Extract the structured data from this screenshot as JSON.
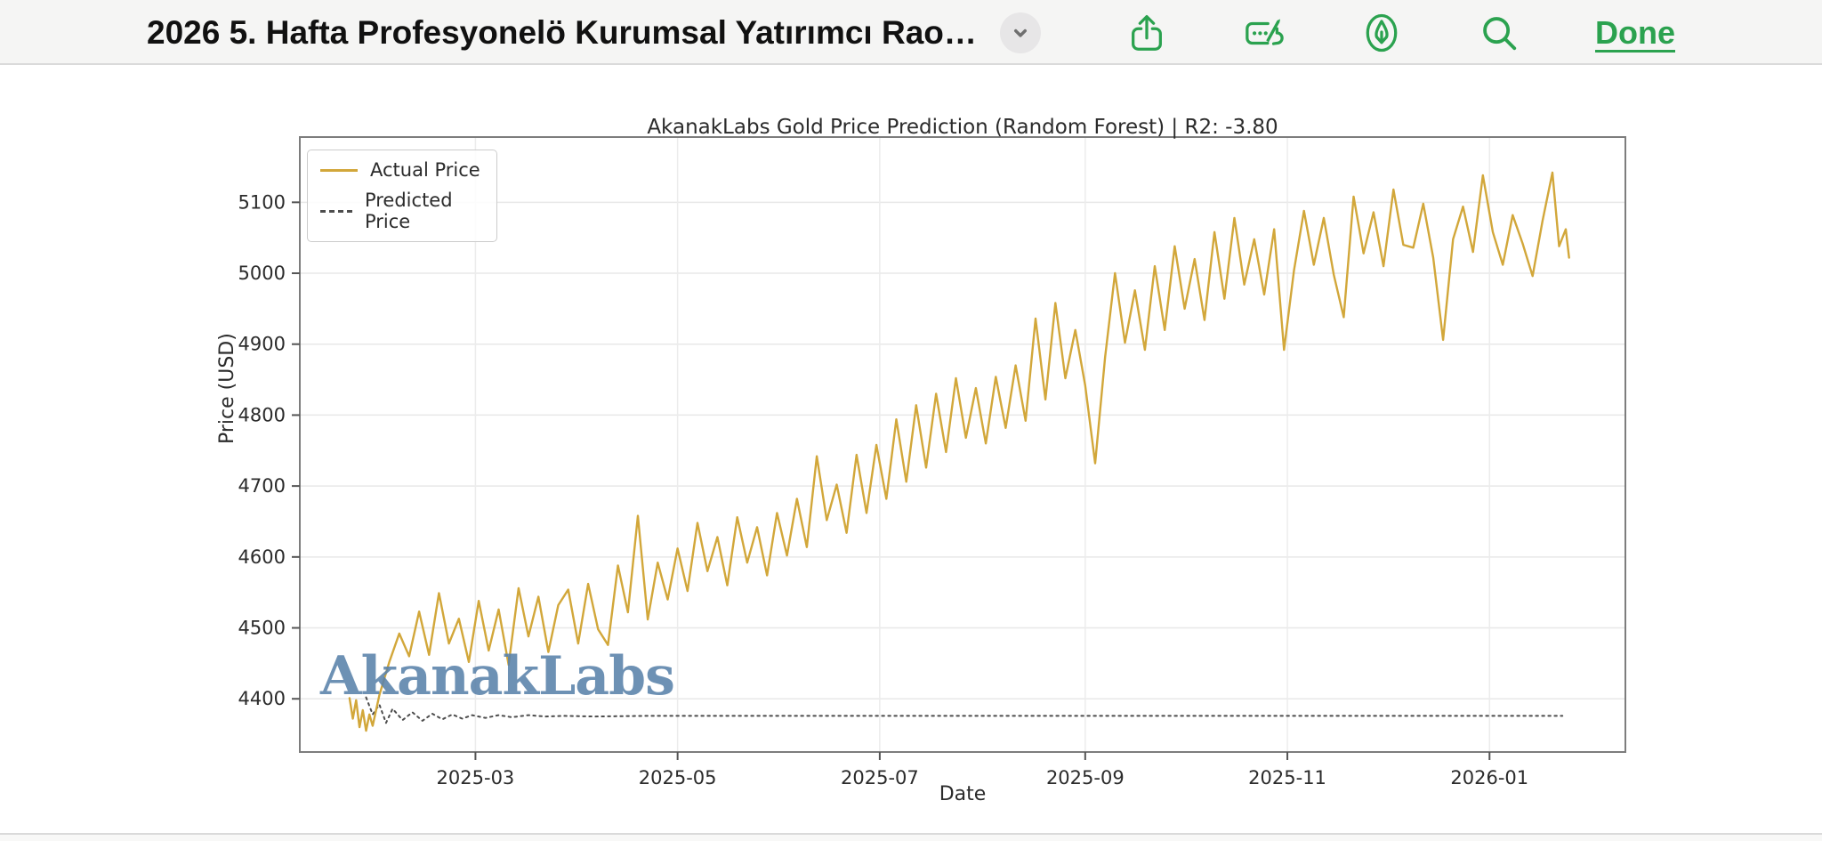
{
  "toolbar": {
    "title": "2026 5. Hafta Profesyonelö Kurumsal Yatırımcı Rao…",
    "done_label": "Done",
    "accent_color": "#2ba24f",
    "icons": [
      "chevron-down-icon",
      "share-icon",
      "form-signature-icon",
      "markup-pen-icon",
      "search-icon"
    ]
  },
  "chart_data": {
    "type": "line",
    "title": "AkanakLabs Gold Price Prediction (Random Forest) | R2: -3.80",
    "xlabel": "Date",
    "ylabel": "Price (USD)",
    "watermark": "AkanakLabs",
    "legend_position": "upper left",
    "grid": true,
    "y_ticks": [
      4400,
      4500,
      4600,
      4700,
      4800,
      4900,
      5000,
      5100
    ],
    "x_ticks": [
      {
        "label": "2025-03",
        "day": 59
      },
      {
        "label": "2025-05",
        "day": 120
      },
      {
        "label": "2025-07",
        "day": 181
      },
      {
        "label": "2025-09",
        "day": 243
      },
      {
        "label": "2025-11",
        "day": 304
      },
      {
        "label": "2026-01",
        "day": 365
      }
    ],
    "day_zero_date": "2025-01-01",
    "x_domain_days": [
      6,
      406
    ],
    "y_domain": [
      4325,
      5192
    ],
    "series": [
      {
        "name": "Actual Price",
        "style": "solid",
        "color": "#d2a73a",
        "points": [
          [
            21,
            4401
          ],
          [
            22,
            4372
          ],
          [
            23,
            4398
          ],
          [
            24,
            4360
          ],
          [
            25,
            4384
          ],
          [
            26,
            4355
          ],
          [
            27,
            4378
          ],
          [
            28,
            4362
          ],
          [
            30,
            4405
          ],
          [
            33,
            4452
          ],
          [
            36,
            4492
          ],
          [
            39,
            4460
          ],
          [
            42,
            4523
          ],
          [
            45,
            4462
          ],
          [
            48,
            4549
          ],
          [
            51,
            4478
          ],
          [
            54,
            4513
          ],
          [
            57,
            4452
          ],
          [
            60,
            4538
          ],
          [
            63,
            4468
          ],
          [
            66,
            4526
          ],
          [
            69,
            4448
          ],
          [
            72,
            4556
          ],
          [
            75,
            4488
          ],
          [
            78,
            4544
          ],
          [
            81,
            4466
          ],
          [
            84,
            4532
          ],
          [
            87,
            4554
          ],
          [
            90,
            4478
          ],
          [
            93,
            4562
          ],
          [
            96,
            4498
          ],
          [
            99,
            4476
          ],
          [
            102,
            4588
          ],
          [
            105,
            4522
          ],
          [
            108,
            4658
          ],
          [
            111,
            4512
          ],
          [
            114,
            4592
          ],
          [
            117,
            4540
          ],
          [
            120,
            4612
          ],
          [
            123,
            4552
          ],
          [
            126,
            4648
          ],
          [
            129,
            4580
          ],
          [
            132,
            4628
          ],
          [
            135,
            4560
          ],
          [
            138,
            4656
          ],
          [
            141,
            4592
          ],
          [
            144,
            4642
          ],
          [
            147,
            4574
          ],
          [
            150,
            4662
          ],
          [
            153,
            4602
          ],
          [
            156,
            4682
          ],
          [
            159,
            4614
          ],
          [
            162,
            4742
          ],
          [
            165,
            4652
          ],
          [
            168,
            4702
          ],
          [
            171,
            4634
          ],
          [
            174,
            4744
          ],
          [
            177,
            4662
          ],
          [
            180,
            4758
          ],
          [
            183,
            4682
          ],
          [
            186,
            4794
          ],
          [
            189,
            4706
          ],
          [
            192,
            4814
          ],
          [
            195,
            4726
          ],
          [
            198,
            4830
          ],
          [
            201,
            4748
          ],
          [
            204,
            4852
          ],
          [
            207,
            4768
          ],
          [
            210,
            4838
          ],
          [
            213,
            4760
          ],
          [
            216,
            4854
          ],
          [
            219,
            4782
          ],
          [
            222,
            4870
          ],
          [
            225,
            4792
          ],
          [
            228,
            4936
          ],
          [
            231,
            4822
          ],
          [
            234,
            4958
          ],
          [
            237,
            4852
          ],
          [
            240,
            4920
          ],
          [
            243,
            4842
          ],
          [
            246,
            4732
          ],
          [
            249,
            4882
          ],
          [
            252,
            5000
          ],
          [
            255,
            4902
          ],
          [
            258,
            4976
          ],
          [
            261,
            4892
          ],
          [
            264,
            5010
          ],
          [
            267,
            4920
          ],
          [
            270,
            5038
          ],
          [
            273,
            4950
          ],
          [
            276,
            5020
          ],
          [
            279,
            4934
          ],
          [
            282,
            5058
          ],
          [
            285,
            4964
          ],
          [
            288,
            5078
          ],
          [
            291,
            4984
          ],
          [
            294,
            5048
          ],
          [
            297,
            4970
          ],
          [
            300,
            5062
          ],
          [
            303,
            4892
          ],
          [
            306,
            5004
          ],
          [
            309,
            5088
          ],
          [
            312,
            5012
          ],
          [
            315,
            5078
          ],
          [
            318,
            4998
          ],
          [
            321,
            4938
          ],
          [
            324,
            5108
          ],
          [
            327,
            5028
          ],
          [
            330,
            5086
          ],
          [
            333,
            5010
          ],
          [
            336,
            5118
          ],
          [
            339,
            5040
          ],
          [
            342,
            5036
          ],
          [
            345,
            5098
          ],
          [
            348,
            5022
          ],
          [
            351,
            4906
          ],
          [
            354,
            5048
          ],
          [
            357,
            5094
          ],
          [
            360,
            5030
          ],
          [
            363,
            5138
          ],
          [
            366,
            5058
          ],
          [
            369,
            5012
          ],
          [
            372,
            5082
          ],
          [
            375,
            5042
          ],
          [
            378,
            4996
          ],
          [
            381,
            5074
          ],
          [
            384,
            5142
          ],
          [
            386,
            5038
          ],
          [
            388,
            5062
          ],
          [
            389,
            5022
          ]
        ]
      },
      {
        "name": "Predicted Price",
        "style": "dashed",
        "color": "#4d4d4d",
        "points": [
          [
            26,
            4402
          ],
          [
            28,
            4378
          ],
          [
            30,
            4392
          ],
          [
            32,
            4366
          ],
          [
            34,
            4386
          ],
          [
            37,
            4370
          ],
          [
            40,
            4381
          ],
          [
            43,
            4369
          ],
          [
            46,
            4379
          ],
          [
            49,
            4371
          ],
          [
            52,
            4378
          ],
          [
            55,
            4372
          ],
          [
            58,
            4377
          ],
          [
            62,
            4373
          ],
          [
            66,
            4377
          ],
          [
            70,
            4374
          ],
          [
            75,
            4377
          ],
          [
            80,
            4375
          ],
          [
            86,
            4376
          ],
          [
            95,
            4375
          ],
          [
            110,
            4376
          ],
          [
            130,
            4376
          ],
          [
            155,
            4376
          ],
          [
            180,
            4376
          ],
          [
            210,
            4376
          ],
          [
            240,
            4376
          ],
          [
            270,
            4376
          ],
          [
            300,
            4376
          ],
          [
            330,
            4376
          ],
          [
            360,
            4376
          ],
          [
            387,
            4376
          ]
        ]
      }
    ]
  }
}
